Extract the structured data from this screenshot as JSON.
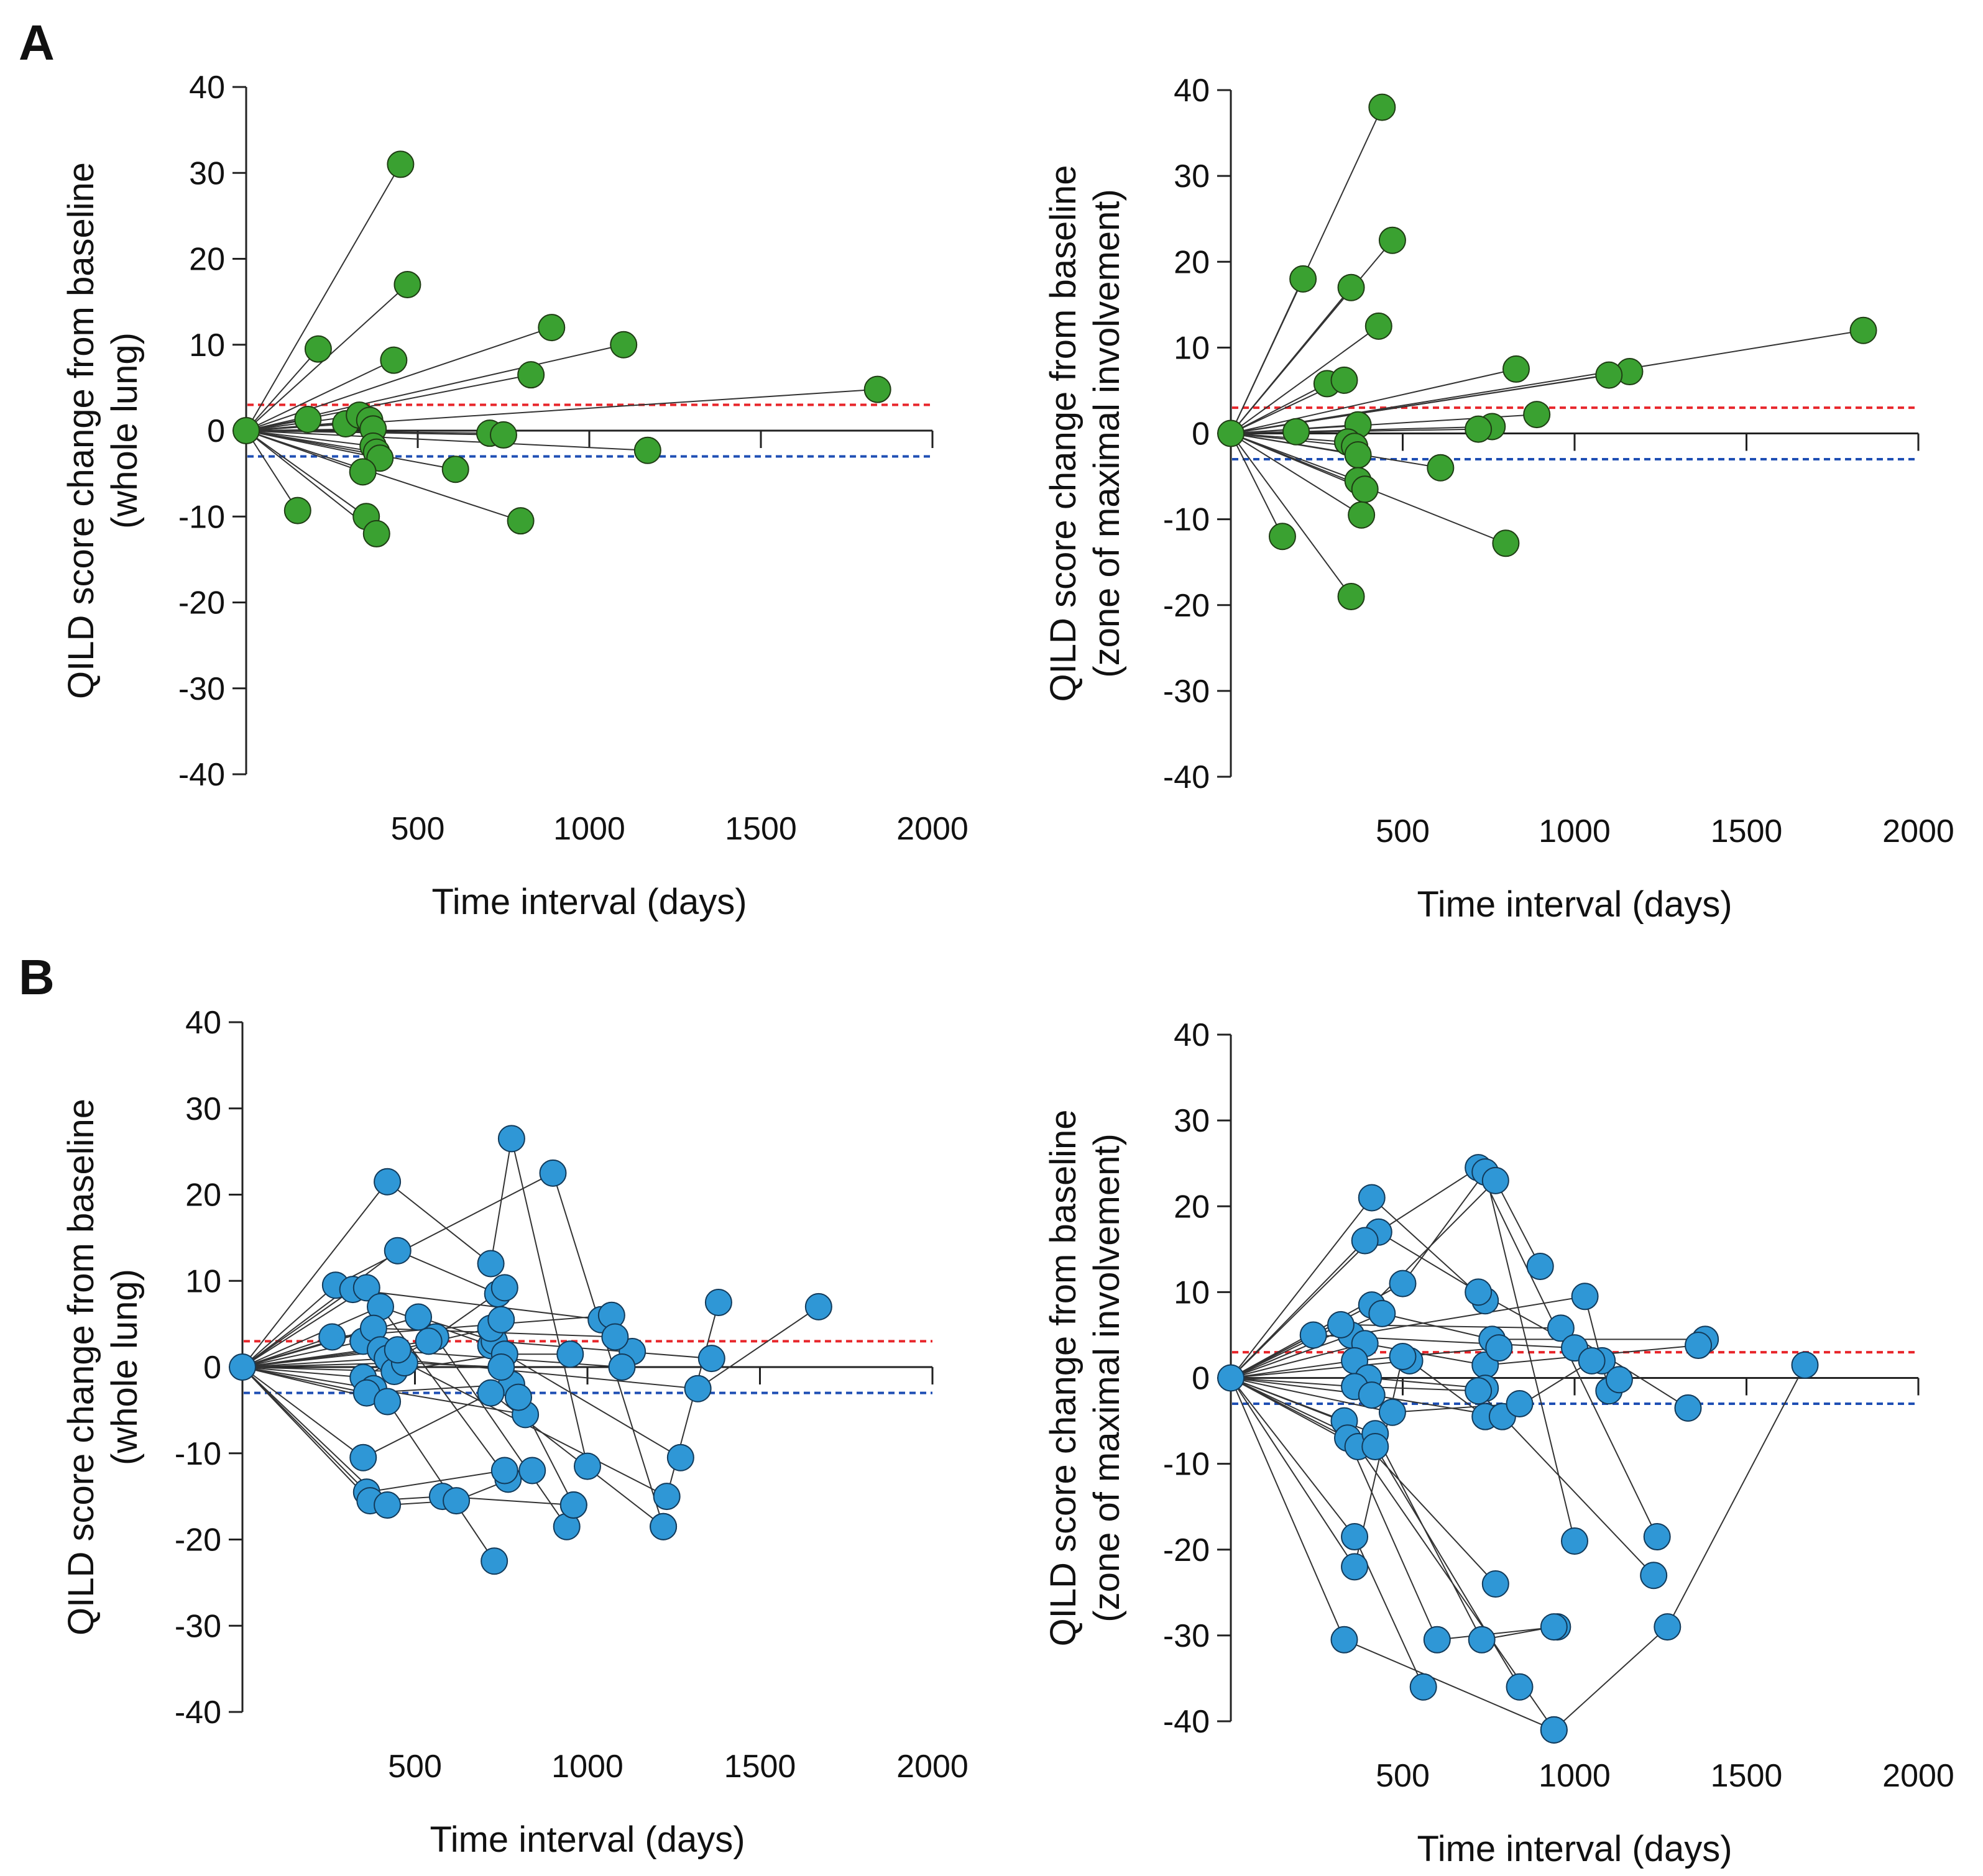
{
  "figure": {
    "panel_labels": [
      "A",
      "B"
    ]
  },
  "chart_data": [
    {
      "type": "scatter",
      "panel": "A",
      "position": "top-left",
      "xlabel": "Time interval (days)",
      "ylabel_line1": "QILD score change from baseline",
      "ylabel_line2": "(whole lung)",
      "xlim": [
        0,
        2000
      ],
      "ylim": [
        -40,
        40
      ],
      "xticks": [
        500,
        1000,
        1500,
        2000
      ],
      "yticks": [
        -40,
        -30,
        -20,
        -10,
        0,
        10,
        20,
        30,
        40
      ],
      "reference_lines": [
        {
          "y": 3,
          "color": "#e8262b",
          "style": "dashed"
        },
        {
          "y": -3,
          "color": "#1f4fb4",
          "style": "dashed"
        }
      ],
      "marker_fill": "#3aa131",
      "marker_stroke": "#1f3d14",
      "connect_from_origin": true,
      "points": [
        [
          450,
          31
        ],
        [
          470,
          17
        ],
        [
          210,
          9.5
        ],
        [
          430,
          8.2
        ],
        [
          890,
          12
        ],
        [
          1100,
          10
        ],
        [
          830,
          6.5
        ],
        [
          1840,
          4.8
        ],
        [
          180,
          1.3
        ],
        [
          290,
          0.8
        ],
        [
          330,
          1.8
        ],
        [
          360,
          1.2
        ],
        [
          370,
          0.2
        ],
        [
          710,
          -0.3
        ],
        [
          750,
          -0.5
        ],
        [
          370,
          -1.8
        ],
        [
          380,
          -2.5
        ],
        [
          1170,
          -2.3
        ],
        [
          390,
          -3.2
        ],
        [
          340,
          -4.8
        ],
        [
          610,
          -4.5
        ],
        [
          150,
          -9.3
        ],
        [
          350,
          -10
        ],
        [
          380,
          -12
        ],
        [
          800,
          -10.5
        ]
      ],
      "paths": []
    },
    {
      "type": "scatter",
      "panel": "A",
      "position": "top-right",
      "xlabel": "Time interval (days)",
      "ylabel_line1": "QILD score change from baseline",
      "ylabel_line2": "(zone of maximal involvement)",
      "xlim": [
        0,
        2000
      ],
      "ylim": [
        -40,
        40
      ],
      "xticks": [
        500,
        1000,
        1500,
        2000
      ],
      "yticks": [
        -40,
        -30,
        -20,
        -10,
        0,
        10,
        20,
        30,
        40
      ],
      "reference_lines": [
        {
          "y": 3,
          "color": "#e8262b",
          "style": "dashed"
        },
        {
          "y": -3,
          "color": "#1f4fb4",
          "style": "dashed"
        }
      ],
      "marker_fill": "#3aa131",
      "marker_stroke": "#1f3d14",
      "connect_from_origin": true,
      "points": [
        [
          440,
          38
        ],
        [
          470,
          22.5
        ],
        [
          210,
          18
        ],
        [
          350,
          17
        ],
        [
          430,
          12.5
        ],
        [
          1840,
          12
        ],
        [
          830,
          7.5
        ],
        [
          1160,
          7.2
        ],
        [
          1100,
          6.8
        ],
        [
          280,
          5.8
        ],
        [
          330,
          6.2
        ],
        [
          890,
          2.2
        ],
        [
          370,
          1
        ],
        [
          760,
          0.8
        ],
        [
          720,
          0.5
        ],
        [
          190,
          0.2
        ],
        [
          340,
          -1
        ],
        [
          360,
          -1.5
        ],
        [
          370,
          -2.5
        ],
        [
          610,
          -4
        ],
        [
          370,
          -5.5
        ],
        [
          390,
          -6.5
        ],
        [
          150,
          -12
        ],
        [
          380,
          -9.5
        ],
        [
          800,
          -12.8
        ],
        [
          350,
          -19
        ]
      ],
      "paths": []
    },
    {
      "type": "scatter",
      "panel": "B",
      "position": "bottom-left",
      "xlabel": "Time interval (days)",
      "ylabel_line1": "QILD score change from baseline",
      "ylabel_line2": "(whole lung)",
      "xlim": [
        0,
        2000
      ],
      "ylim": [
        -40,
        40
      ],
      "xticks": [
        500,
        1000,
        1500,
        2000
      ],
      "yticks": [
        -40,
        -30,
        -20,
        -10,
        0,
        10,
        20,
        30,
        40
      ],
      "reference_lines": [
        {
          "y": 3,
          "color": "#e8262b",
          "style": "dashed"
        },
        {
          "y": -3,
          "color": "#1f4fb4",
          "style": "dashed"
        }
      ],
      "marker_fill": "#2f97d6",
      "marker_stroke": "#123a5a",
      "connect_from_origin": true,
      "points": [],
      "paths": [
        [
          [
            0,
            0
          ],
          [
            420,
            21.5
          ],
          [
            720,
            12
          ],
          [
            780,
            26.5
          ],
          [
            1000,
            -11.5
          ]
        ],
        [
          [
            0,
            0
          ],
          [
            450,
            13.5
          ],
          [
            740,
            8.5
          ]
        ],
        [
          [
            0,
            0
          ],
          [
            270,
            9.5
          ],
          [
            900,
            22.5
          ],
          [
            1220,
            -18.5
          ]
        ],
        [
          [
            0,
            0
          ],
          [
            320,
            9
          ],
          [
            1040,
            5.5
          ]
        ],
        [
          [
            0,
            0
          ],
          [
            360,
            9.2
          ],
          [
            770,
            -13
          ]
        ],
        [
          [
            0,
            0
          ],
          [
            260,
            3.5
          ],
          [
            1070,
            6
          ],
          [
            1130,
            1.8
          ]
        ],
        [
          [
            0,
            0
          ],
          [
            400,
            7
          ],
          [
            720,
            2.5
          ],
          [
            1270,
            -10.5
          ]
        ],
        [
          [
            0,
            0
          ],
          [
            350,
            3
          ],
          [
            1230,
            -15
          ],
          [
            1380,
            7.5
          ]
        ],
        [
          [
            0,
            0
          ],
          [
            380,
            4.5
          ],
          [
            1080,
            3.5
          ]
        ],
        [
          [
            0,
            0
          ],
          [
            510,
            5.8
          ],
          [
            730,
            3
          ],
          [
            1360,
            1
          ]
        ],
        [
          [
            0,
            0
          ],
          [
            400,
            2
          ],
          [
            1100,
            0
          ]
        ],
        [
          [
            0,
            0
          ],
          [
            420,
            1
          ],
          [
            1320,
            -2.5
          ],
          [
            1670,
            7
          ]
        ],
        [
          [
            0,
            0
          ],
          [
            440,
            -0.5
          ],
          [
            760,
            1.5
          ],
          [
            950,
            1.5
          ]
        ],
        [
          [
            0,
            0
          ],
          [
            350,
            -1.2
          ],
          [
            560,
            3.5
          ],
          [
            940,
            -18.5
          ]
        ],
        [
          [
            0,
            0
          ],
          [
            380,
            -2.5
          ],
          [
            820,
            -5.5
          ]
        ],
        [
          [
            0,
            0
          ],
          [
            360,
            -3
          ],
          [
            780,
            -2
          ],
          [
            960,
            -16
          ]
        ],
        [
          [
            0,
            0
          ],
          [
            420,
            -4
          ],
          [
            730,
            -22.5
          ]
        ],
        [
          [
            0,
            0
          ],
          [
            350,
            -10.5
          ],
          [
            720,
            -3
          ],
          [
            1220,
            -18.5
          ]
        ],
        [
          [
            0,
            0
          ],
          [
            360,
            -14.5
          ],
          [
            760,
            -12
          ]
        ],
        [
          [
            0,
            0
          ],
          [
            370,
            -15.5
          ],
          [
            580,
            -15
          ],
          [
            960,
            -16
          ]
        ],
        [
          [
            0,
            0
          ],
          [
            420,
            -16
          ],
          [
            620,
            -15.5
          ],
          [
            840,
            -12
          ]
        ],
        [
          [
            0,
            0
          ],
          [
            470,
            0.5
          ],
          [
            750,
            0
          ],
          [
            800,
            -3.5
          ]
        ],
        [
          [
            0,
            0
          ],
          [
            540,
            3
          ],
          [
            760,
            9.2
          ]
        ],
        [
          [
            0,
            0
          ],
          [
            450,
            2
          ],
          [
            720,
            4.5
          ],
          [
            750,
            5.5
          ]
        ]
      ]
    },
    {
      "type": "scatter",
      "panel": "B",
      "position": "bottom-right",
      "xlabel": "Time interval (days)",
      "ylabel_line1": "QILD score change from baseline",
      "ylabel_line2": "(zone of maximal involvement)",
      "xlim": [
        0,
        2000
      ],
      "ylim": [
        -40,
        40
      ],
      "xticks": [
        500,
        1000,
        1500,
        2000
      ],
      "yticks": [
        -40,
        -30,
        -20,
        -10,
        0,
        10,
        20,
        30,
        40
      ],
      "reference_lines": [
        {
          "y": 3,
          "color": "#e8262b",
          "style": "dashed"
        },
        {
          "y": -3,
          "color": "#1f4fb4",
          "style": "dashed"
        }
      ],
      "marker_fill": "#2f97d6",
      "marker_stroke": "#123a5a",
      "connect_from_origin": true,
      "points": [],
      "paths": [
        [
          [
            0,
            0
          ],
          [
            410,
            21
          ],
          [
            740,
            9
          ]
        ],
        [
          [
            0,
            0
          ],
          [
            430,
            17
          ],
          [
            720,
            10
          ],
          [
            1080,
            2
          ]
        ],
        [
          [
            0,
            0
          ],
          [
            390,
            16
          ],
          [
            720,
            24.5
          ],
          [
            1240,
            -18.5
          ]
        ],
        [
          [
            0,
            0
          ],
          [
            500,
            11
          ],
          [
            740,
            24
          ],
          [
            1000,
            -19
          ]
        ],
        [
          [
            0,
            0
          ],
          [
            410,
            8.5
          ],
          [
            770,
            23
          ],
          [
            900,
            13
          ]
        ],
        [
          [
            0,
            0
          ],
          [
            350,
            5
          ],
          [
            1030,
            9.5
          ],
          [
            1100,
            -1.5
          ]
        ],
        [
          [
            0,
            0
          ],
          [
            320,
            6.2
          ],
          [
            960,
            5.8
          ],
          [
            1330,
            -3.5
          ]
        ],
        [
          [
            0,
            0
          ],
          [
            240,
            5
          ],
          [
            1000,
            3.5
          ],
          [
            1130,
            -0.2
          ]
        ],
        [
          [
            0,
            0
          ],
          [
            440,
            7.5
          ],
          [
            760,
            4.5
          ],
          [
            1380,
            4.5
          ]
        ],
        [
          [
            0,
            0
          ],
          [
            390,
            4
          ],
          [
            740,
            1.5
          ],
          [
            1360,
            3.8
          ]
        ],
        [
          [
            0,
            0
          ],
          [
            360,
            2
          ],
          [
            780,
            3.5
          ]
        ],
        [
          [
            0,
            0
          ],
          [
            520,
            2
          ],
          [
            740,
            -4.5
          ]
        ],
        [
          [
            0,
            0
          ],
          [
            400,
            0
          ],
          [
            740,
            -1.2
          ]
        ],
        [
          [
            0,
            0
          ],
          [
            360,
            -1
          ],
          [
            720,
            -1.5
          ],
          [
            1230,
            -23
          ]
        ],
        [
          [
            0,
            0
          ],
          [
            410,
            -2
          ],
          [
            790,
            -4.5
          ],
          [
            1050,
            2
          ]
        ],
        [
          [
            0,
            0
          ],
          [
            470,
            -4
          ],
          [
            840,
            -3
          ]
        ],
        [
          [
            0,
            0
          ],
          [
            330,
            -5
          ],
          [
            770,
            -24
          ]
        ],
        [
          [
            0,
            0
          ],
          [
            340,
            -7
          ],
          [
            600,
            -30.5
          ],
          [
            950,
            -29
          ]
        ],
        [
          [
            0,
            0
          ],
          [
            370,
            -8
          ],
          [
            940,
            -41
          ],
          [
            1270,
            -29
          ],
          [
            1670,
            1.5
          ]
        ],
        [
          [
            0,
            0
          ],
          [
            420,
            -6.5
          ],
          [
            730,
            -30.5
          ],
          [
            940,
            -29
          ]
        ],
        [
          [
            0,
            0
          ],
          [
            420,
            -8
          ],
          [
            840,
            -36
          ]
        ],
        [
          [
            0,
            0
          ],
          [
            360,
            -18.5
          ],
          [
            560,
            -36
          ]
        ],
        [
          [
            0,
            0
          ],
          [
            360,
            -22
          ],
          [
            500,
            2.5
          ]
        ],
        [
          [
            0,
            0
          ],
          [
            330,
            -30.5
          ],
          [
            940,
            -41
          ]
        ]
      ]
    }
  ]
}
